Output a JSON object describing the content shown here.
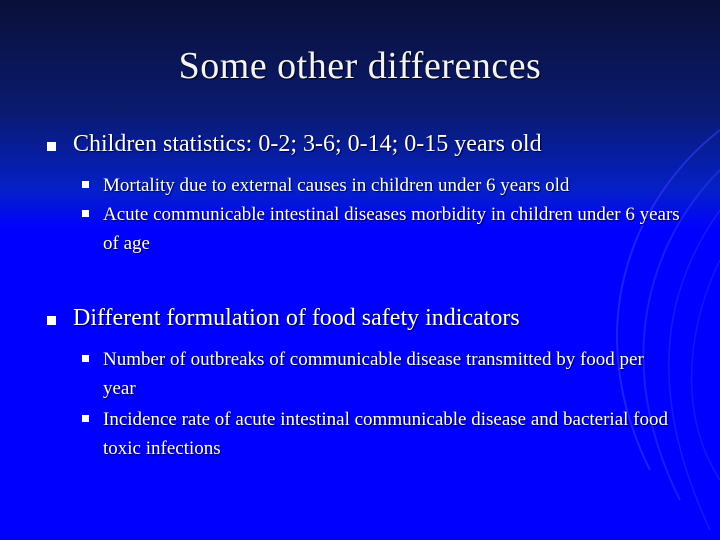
{
  "slide": {
    "title": "Some other differences",
    "bullets": [
      {
        "text": "Children statistics: 0-2; 3-6; 0-14; 0-15 years old",
        "sub": [
          "Mortality due to external causes in children under 6 years old",
          "Acute communicable intestinal diseases morbidity in children under 6 years of age"
        ]
      },
      {
        "text": "Different formulation of food safety indicators",
        "sub": [
          "Number of outbreaks of communicable disease transmitted by food per year",
          "Incidence rate of acute intestinal communicable disease and bacterial food toxic infections"
        ]
      }
    ]
  },
  "colors": {
    "background": "#0000ff",
    "header_top": "#0b1038",
    "text": "#ffffff"
  }
}
